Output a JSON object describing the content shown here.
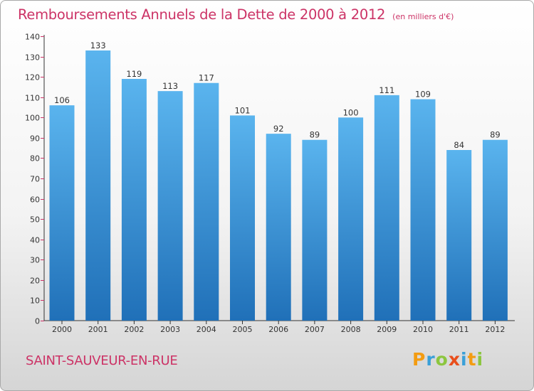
{
  "title": "Remboursements Annuels de la Dette de 2000 à 2012",
  "subtitle": "(en milliers d'€)",
  "commune": "SAINT-SAUVEUR-EN-RUE",
  "logo": {
    "text": "Proxiti",
    "letters": [
      {
        "ch": "P",
        "color": "#f39c12"
      },
      {
        "ch": "r",
        "color": "#3aa0d8"
      },
      {
        "ch": "o",
        "color": "#8cc63f"
      },
      {
        "ch": "x",
        "color": "#e94e1b"
      },
      {
        "ch": "i",
        "color": "#3aa0d8"
      },
      {
        "ch": "t",
        "color": "#f39c12"
      },
      {
        "ch": "i",
        "color": "#8cc63f"
      }
    ]
  },
  "colors": {
    "title": "#cc3366",
    "bar_top": "#5ab4ee",
    "bar_bottom": "#2070b8",
    "axis": "#333333",
    "axis_ticks": "#cc3366"
  },
  "chart_data": {
    "type": "bar",
    "title": "Remboursements Annuels de la Dette de 2000 à 2012",
    "subtitle": "(en milliers d'€)",
    "categories": [
      "2000",
      "2001",
      "2002",
      "2003",
      "2004",
      "2005",
      "2006",
      "2007",
      "2008",
      "2009",
      "2010",
      "2011",
      "2012"
    ],
    "values": [
      106,
      133,
      119,
      113,
      117,
      101,
      92,
      89,
      100,
      111,
      109,
      84,
      89
    ],
    "ylim": [
      0,
      140
    ],
    "yticks": [
      0,
      10,
      20,
      30,
      40,
      50,
      60,
      70,
      80,
      90,
      100,
      110,
      120,
      130,
      140
    ],
    "data_labels": true,
    "grid": false,
    "legend": "none"
  }
}
